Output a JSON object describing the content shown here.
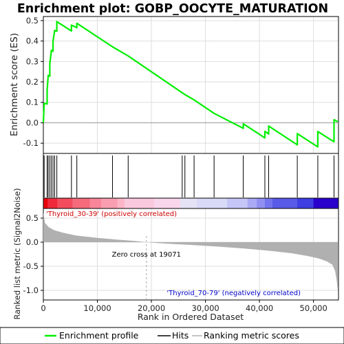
{
  "chart_data": {
    "type": "line",
    "title": "Enrichment plot: GOBP_OOCYTE_MATURATION",
    "ylabel_top": "Enrichment score (ES)",
    "ylabel_bottom": "Ranked list metric (Signal2Noise)",
    "xlabel": "Rank in Ordered Dataset",
    "n_genes": 54500,
    "es_ylim": [
      -0.15,
      0.52
    ],
    "es_yticks": [
      -0.1,
      0.0,
      0.1,
      0.2,
      0.3,
      0.4,
      0.5
    ],
    "es_ytick_labels": [
      "-0.1",
      "0.0",
      "0.1",
      "0.2",
      "0.3",
      "0.4",
      "0.5"
    ],
    "xticks": [
      0,
      10000,
      20000,
      30000,
      40000,
      50000
    ],
    "xtick_labels": [
      "0",
      "10,000",
      "20,000",
      "30,000",
      "40,000",
      "50,000"
    ],
    "metric_ylim": [
      -1.2,
      0.7
    ],
    "metric_yticks": [
      -1.0,
      -0.5,
      0.0,
      0.5
    ],
    "metric_ytick_labels": [
      "-1.0",
      "-0.5",
      "0.0",
      "0.5"
    ],
    "hits": [
      150,
      700,
      900,
      1200,
      1500,
      1800,
      2100,
      2500,
      5200,
      6200,
      12800,
      15700,
      25700,
      26200,
      27900,
      31600,
      37000,
      41000,
      41700,
      47000,
      50800,
      53800
    ],
    "es_curve": [
      [
        0,
        0.0
      ],
      [
        150,
        0.095
      ],
      [
        700,
        0.092
      ],
      [
        700,
        0.16
      ],
      [
        900,
        0.232
      ],
      [
        1200,
        0.228
      ],
      [
        1200,
        0.29
      ],
      [
        1500,
        0.355
      ],
      [
        1800,
        0.35
      ],
      [
        1800,
        0.4
      ],
      [
        2100,
        0.452
      ],
      [
        2500,
        0.448
      ],
      [
        2500,
        0.495
      ],
      [
        5200,
        0.449
      ],
      [
        5200,
        0.478
      ],
      [
        6200,
        0.465
      ],
      [
        6200,
        0.487
      ],
      [
        12800,
        0.372
      ],
      [
        15700,
        0.327
      ],
      [
        25700,
        0.147
      ],
      [
        26200,
        0.138
      ],
      [
        27900,
        0.112
      ],
      [
        31600,
        0.046
      ],
      [
        37000,
        -0.027
      ],
      [
        37000,
        -0.005
      ],
      [
        41000,
        -0.074
      ],
      [
        41000,
        -0.042
      ],
      [
        41700,
        -0.055
      ],
      [
        41700,
        -0.016
      ],
      [
        47000,
        -0.108
      ],
      [
        47000,
        -0.053
      ],
      [
        50800,
        -0.118
      ],
      [
        50800,
        -0.043
      ],
      [
        53800,
        -0.093
      ],
      [
        53800,
        0.015
      ],
      [
        54500,
        0.005
      ]
    ],
    "metric_curve": [
      [
        0,
        0.62
      ],
      [
        300,
        0.4
      ],
      [
        1000,
        0.31
      ],
      [
        2000,
        0.25
      ],
      [
        3500,
        0.2
      ],
      [
        6000,
        0.14
      ],
      [
        10000,
        0.09
      ],
      [
        14000,
        0.05
      ],
      [
        17000,
        0.025
      ],
      [
        19071,
        0.0
      ],
      [
        22000,
        -0.025
      ],
      [
        27000,
        -0.055
      ],
      [
        32000,
        -0.09
      ],
      [
        37000,
        -0.13
      ],
      [
        42000,
        -0.18
      ],
      [
        46000,
        -0.23
      ],
      [
        49000,
        -0.29
      ],
      [
        51000,
        -0.34
      ],
      [
        52500,
        -0.4
      ],
      [
        53500,
        -0.47
      ],
      [
        54000,
        -0.6
      ],
      [
        54300,
        -0.8
      ],
      [
        54500,
        -1.0
      ]
    ],
    "zero_cross": 19071,
    "zero_cross_label": "Zero cross at 19071",
    "positive_label": "'Thyroid_30-39' (positively correlated)",
    "negative_label": "'Thyroid_70-79' (negatively correlated)",
    "colors": {
      "es_line": "#00ee00",
      "hit_line": "#000000",
      "metric_fill": "#b0b0b0",
      "positive_text": "#cc0000",
      "negative_text": "#0000cc",
      "zero_line": "#aaaaaa",
      "grid": "#dddddd"
    },
    "bar_segments": [
      {
        "end": 800,
        "color": "#e8000a"
      },
      {
        "end": 2600,
        "color": "#f02a3a"
      },
      {
        "end": 5400,
        "color": "#f34d5d"
      },
      {
        "end": 8600,
        "color": "#f56b7b"
      },
      {
        "end": 10700,
        "color": "#f7869a"
      },
      {
        "end": 13700,
        "color": "#f99eb0"
      },
      {
        "end": 15000,
        "color": "#fbb5c6"
      },
      {
        "end": 20500,
        "color": "#fbc9dd"
      },
      {
        "end": 25300,
        "color": "#f9d6eb"
      },
      {
        "end": 28400,
        "color": "#e6e2f6"
      },
      {
        "end": 34000,
        "color": "#d9d9f8"
      },
      {
        "end": 37800,
        "color": "#c5c5f8"
      },
      {
        "end": 39500,
        "color": "#a9a9f5"
      },
      {
        "end": 41000,
        "color": "#9090f2"
      },
      {
        "end": 42400,
        "color": "#7474ee"
      },
      {
        "end": 47000,
        "color": "#5a5ae8"
      },
      {
        "end": 50000,
        "color": "#3e3ee2"
      },
      {
        "end": 54500,
        "color": "#2a00cc"
      }
    ],
    "legend": [
      {
        "label": "Enrichment profile",
        "color": "#00ee00"
      },
      {
        "label": "Hits",
        "color": "#000000"
      },
      {
        "label": "Ranking metric scores",
        "color": "#b0b0b0"
      }
    ]
  }
}
